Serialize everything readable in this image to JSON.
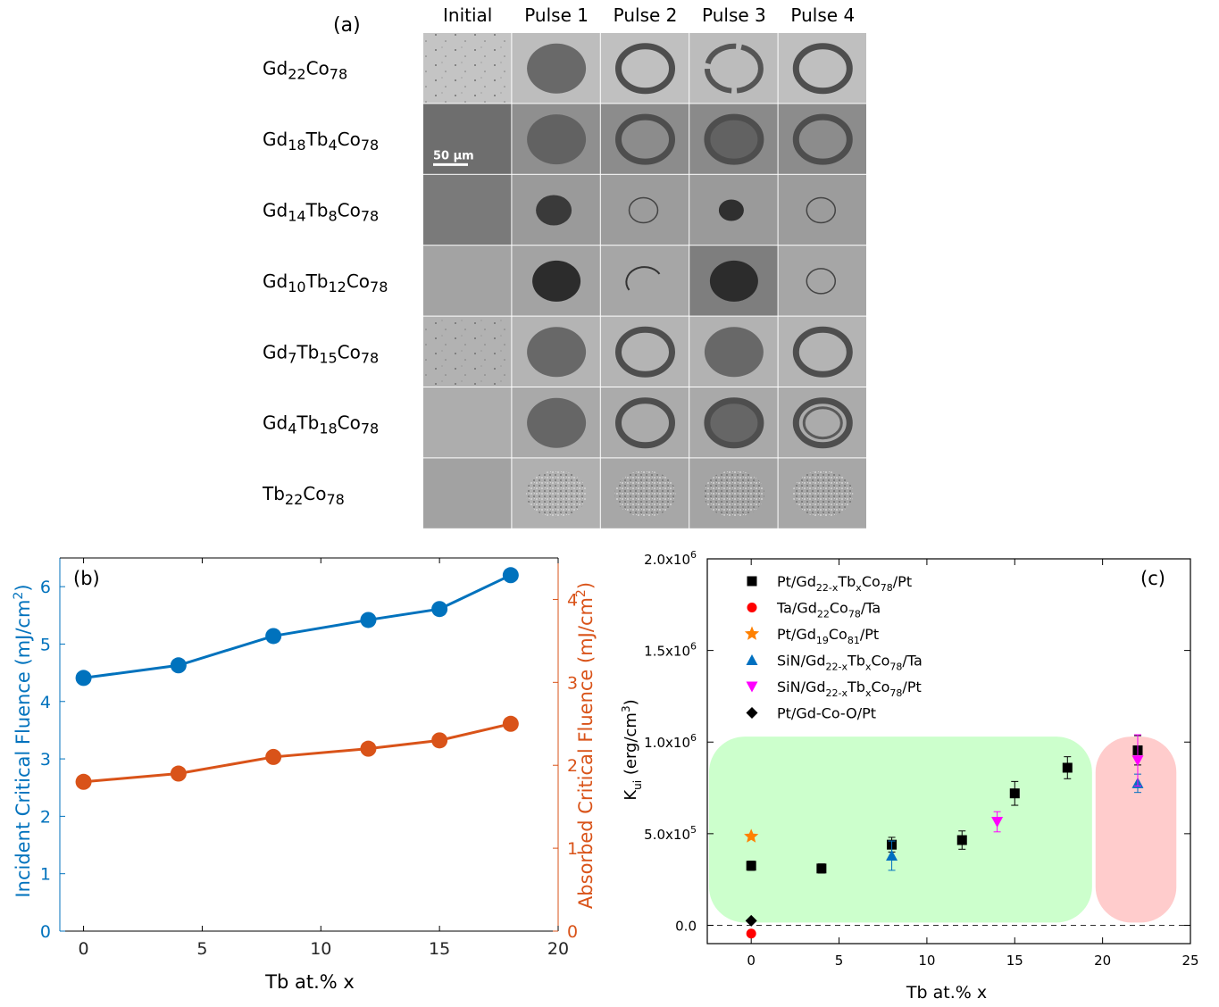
{
  "panel_a": {
    "tag": "(a)",
    "columns": [
      "Initial",
      "Pulse 1",
      "Pulse 2",
      "Pulse 3",
      "Pulse 4"
    ],
    "rows": [
      {
        "base": "Gd",
        "sub1": "22",
        "mid": "Co",
        "sub2": "78",
        "extra": "",
        "sub3": "",
        "tiles": [
          "dots",
          "fill",
          "ring",
          "ring-gap",
          "ring"
        ],
        "bg": [
          "#c4c4c4",
          "#bdbdbd",
          "#c0c0c0",
          "#bcbcbc",
          "#bfbfbf"
        ]
      },
      {
        "base": "Gd",
        "sub1": "18",
        "mid": "Tb",
        "sub2": "4",
        "extra": "Co",
        "sub3": "78",
        "tiles": [
          "plain",
          "fill",
          "ring",
          "ring-fill",
          "ring"
        ],
        "bg": [
          "#6e6e6e",
          "#8f8f8f",
          "#8c8c8c",
          "#8a8a8a",
          "#8c8c8c"
        ]
      },
      {
        "base": "Gd",
        "sub1": "14",
        "mid": "Tb",
        "sub2": "8",
        "extra": "Co",
        "sub3": "78",
        "tiles": [
          "plain",
          "fill-small",
          "thin-ring",
          "fill-tiny",
          "thin-ring"
        ],
        "bg": [
          "#7a7a7a",
          "#9a9a9a",
          "#9c9c9c",
          "#9a9a9a",
          "#9c9c9c"
        ]
      },
      {
        "base": "Gd",
        "sub1": "10",
        "mid": "Tb",
        "sub2": "12",
        "extra": "Co",
        "sub3": "78",
        "tiles": [
          "plain",
          "fill-dark",
          "thin-arc",
          "fill-dark",
          "thin-ring"
        ],
        "bg": [
          "#a3a3a3",
          "#a3a3a3",
          "#a6a6a6",
          "#7e7e7e",
          "#a6a6a6"
        ]
      },
      {
        "base": "Gd",
        "sub1": "7",
        "mid": "Tb",
        "sub2": "15",
        "extra": "Co",
        "sub3": "78",
        "tiles": [
          "dots",
          "fill",
          "ring",
          "fill",
          "ring"
        ],
        "bg": [
          "#b2b2b2",
          "#b4b4b4",
          "#b4b4b4",
          "#b2b2b2",
          "#b4b4b4"
        ]
      },
      {
        "base": "Gd",
        "sub1": "4",
        "mid": "Tb",
        "sub2": "18",
        "extra": "Co",
        "sub3": "78",
        "tiles": [
          "plain",
          "fill",
          "ring",
          "ring-fill",
          "double-ring"
        ],
        "bg": [
          "#adadad",
          "#a9a9a9",
          "#ababab",
          "#a9a9a9",
          "#ababab"
        ]
      },
      {
        "base": "Tb",
        "sub1": "22",
        "mid": "Co",
        "sub2": "78",
        "extra": "",
        "sub3": "",
        "tiles": [
          "plain",
          "speckle",
          "speckle",
          "speckle",
          "speckle"
        ],
        "bg": [
          "#a2a2a2",
          "#b0b0b0",
          "#a7a7a7",
          "#a4a4a4",
          "#a7a7a7"
        ]
      }
    ],
    "scale_bar": "50 μm"
  },
  "chart_data": [
    {
      "type": "line",
      "panel_tag": "(b)",
      "xlabel": "Tb at.% x",
      "ylabel_left": "Incident Critical Fluence (mJ/cm",
      "ylabel_left_sup": "2",
      "ylabel_right": "Absorbed Critical Fluence (mJ/cm",
      "ylabel_right_sup": "2",
      "xlim": [
        -1,
        20
      ],
      "ylim_left": [
        0,
        6.5
      ],
      "ylim_right": [
        0,
        4.5
      ],
      "x_ticks": [
        0,
        5,
        10,
        15,
        20
      ],
      "y_ticks_left": [
        0,
        1,
        2,
        3,
        4,
        5,
        6
      ],
      "y_ticks_right": [
        0,
        1,
        2,
        3,
        4
      ],
      "x": [
        0,
        4,
        8,
        12,
        15,
        18
      ],
      "series": [
        {
          "axis": "left",
          "color": "#0072BD",
          "values": [
            4.41,
            4.63,
            5.14,
            5.42,
            5.61,
            6.2
          ]
        },
        {
          "axis": "right",
          "color": "#D95319",
          "values": [
            1.8,
            1.9,
            2.1,
            2.2,
            2.3,
            2.5
          ]
        }
      ]
    },
    {
      "type": "scatter",
      "panel_tag": "(c)",
      "xlabel": "Tb at.% x",
      "ylabel": "K",
      "ylabel_sub": "ui",
      "ylabel_rest": " (erg/cm",
      "ylabel_sup": "3",
      "ylabel_end": ")",
      "xlim": [
        -2.5,
        25
      ],
      "ylim": [
        -100000,
        2000000
      ],
      "x_ticks": [
        0,
        5,
        10,
        15,
        20,
        25
      ],
      "y_ticks": [
        {
          "v": 0,
          "base": "0.0",
          "exp": ""
        },
        {
          "v": 500000,
          "base": "5.0x10",
          "exp": "5"
        },
        {
          "v": 1000000,
          "base": "1.0x10",
          "exp": "6"
        },
        {
          "v": 1500000,
          "base": "1.5x10",
          "exp": "6"
        },
        {
          "v": 2000000,
          "base": "2.0x10",
          "exp": "6"
        }
      ],
      "zero_line": true,
      "regions": [
        {
          "x0": -2.4,
          "x1": 19.4,
          "y0": 15000,
          "y1": 1030000,
          "color": "#ccffcc"
        },
        {
          "x0": 19.6,
          "x1": 24.2,
          "y0": 15000,
          "y1": 1030000,
          "color": "#ffcccc"
        }
      ],
      "series": [
        {
          "name_parts": [
            [
              "Pt/Gd",
              ""
            ],
            [
              "22-x",
              "sub"
            ],
            [
              "Tb",
              ""
            ],
            [
              "x",
              "sub"
            ],
            [
              "Co",
              ""
            ],
            [
              "78",
              "sub"
            ],
            [
              "/Pt",
              ""
            ]
          ],
          "marker": "square",
          "color": "#000000",
          "points": [
            {
              "x": 0,
              "y": 325000,
              "err": 25000
            },
            {
              "x": 4,
              "y": 310000,
              "err": 25000
            },
            {
              "x": 8,
              "y": 440000,
              "err": 40000
            },
            {
              "x": 12,
              "y": 465000,
              "err": 50000
            },
            {
              "x": 15,
              "y": 720000,
              "err": 65000
            },
            {
              "x": 18,
              "y": 860000,
              "err": 60000
            },
            {
              "x": 22,
              "y": 955000,
              "err": 80000
            }
          ]
        },
        {
          "name_parts": [
            [
              "Ta/Gd",
              ""
            ],
            [
              "22",
              "sub"
            ],
            [
              "Co",
              ""
            ],
            [
              "78",
              "sub"
            ],
            [
              "/Ta",
              ""
            ]
          ],
          "marker": "circle",
          "color": "#ff0000",
          "points": [
            {
              "x": 0,
              "y": -45000,
              "err": 0
            }
          ]
        },
        {
          "name_parts": [
            [
              "Pt/Gd",
              ""
            ],
            [
              "19",
              "sub"
            ],
            [
              "Co",
              ""
            ],
            [
              "81",
              "sub"
            ],
            [
              "/Pt",
              ""
            ]
          ],
          "marker": "star",
          "color": "#ff8000",
          "points": [
            {
              "x": 0,
              "y": 485000,
              "err": 0
            }
          ]
        },
        {
          "name_parts": [
            [
              "SiN/Gd",
              ""
            ],
            [
              "22-x",
              "sub"
            ],
            [
              "Tb",
              ""
            ],
            [
              "x",
              "sub"
            ],
            [
              "Co",
              ""
            ],
            [
              "78",
              "sub"
            ],
            [
              "/Ta",
              ""
            ]
          ],
          "marker": "triangle",
          "color": "#0070c0",
          "points": [
            {
              "x": 8,
              "y": 380000,
              "err": 80000
            },
            {
              "x": 22,
              "y": 775000,
              "err": 50000
            }
          ]
        },
        {
          "name_parts": [
            [
              "SiN/Gd",
              ""
            ],
            [
              "22-x",
              "sub"
            ],
            [
              "Tb",
              ""
            ],
            [
              "x",
              "sub"
            ],
            [
              "Co",
              ""
            ],
            [
              "78",
              "sub"
            ],
            [
              "/Pt",
              ""
            ]
          ],
          "marker": "triangle-down",
          "color": "#ff00ff",
          "points": [
            {
              "x": 14,
              "y": 565000,
              "err": 55000
            },
            {
              "x": 22,
              "y": 900000,
              "err": 140000
            }
          ]
        },
        {
          "name_parts": [
            [
              "Pt/Gd-Co-O/Pt",
              ""
            ]
          ],
          "marker": "diamond",
          "color": "#000000",
          "points": [
            {
              "x": 0,
              "y": 25000,
              "err": 0
            }
          ]
        }
      ]
    }
  ]
}
